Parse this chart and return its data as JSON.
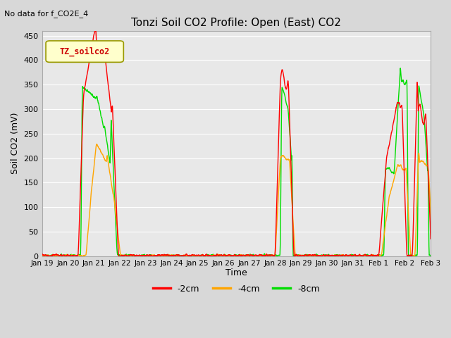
{
  "title": "Tonzi Soil CO2 Profile: Open (East) CO2",
  "no_data_text": "No data for f_CO2E_4",
  "ylabel": "Soil CO2 (mV)",
  "xlabel": "Time",
  "ylim": [
    0,
    460
  ],
  "yticks": [
    0,
    50,
    100,
    150,
    200,
    250,
    300,
    350,
    400,
    450
  ],
  "legend_label": "TZ_soilco2",
  "series_labels": [
    "-2cm",
    "-4cm",
    "-8cm"
  ],
  "series_colors": [
    "#ff0000",
    "#ffa500",
    "#00dd00"
  ],
  "fig_bg": "#d8d8d8",
  "plot_bg": "#e8e8e8",
  "grid_color": "#ffffff",
  "tick_labels": [
    "Jan 19",
    "Jan 20",
    "Jan 21",
    "Jan 22",
    "Jan 23",
    "Jan 24",
    "Jan 25",
    "Jan 26",
    "Jan 27",
    "Jan 28",
    "Jan 29",
    "Jan 30",
    "Jan 31",
    "Feb 1",
    "Feb 2",
    "Feb 3"
  ],
  "tick_positions": [
    0,
    1,
    2,
    3,
    4,
    5,
    6,
    7,
    8,
    9,
    10,
    11,
    12,
    13,
    14,
    15
  ]
}
